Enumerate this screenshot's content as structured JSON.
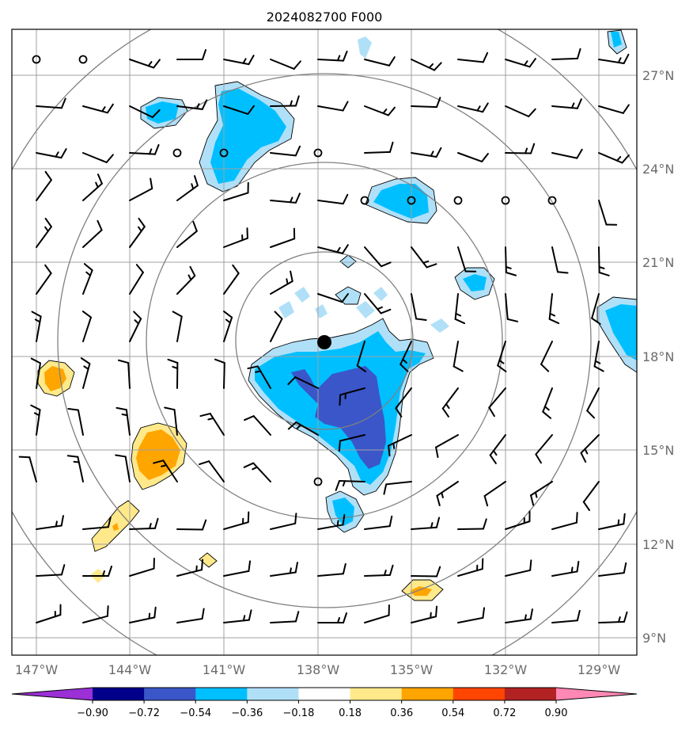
{
  "title": "2024082700 F000",
  "lon_labels": [
    "147°W",
    "144°W",
    "141°W",
    "138°W",
    "135°W",
    "132°W",
    "129°W"
  ],
  "lat_labels": [
    "27°N",
    "24°N",
    "21°N",
    "18°N",
    "15°N",
    "12°N",
    "9°N"
  ],
  "colorbar": {
    "ticks": [
      "−0.90",
      "−0.72",
      "−0.54",
      "−0.36",
      "−0.18",
      "0.18",
      "0.36",
      "0.54",
      "0.72",
      "0.90"
    ],
    "colors": [
      "#9b30d6",
      "#00008b",
      "#3a56c8",
      "#00bfff",
      "#b0e0f8",
      "#ffffff",
      "#ffe98a",
      "#ffa500",
      "#ff4500",
      "#b22222",
      "#ff88b4"
    ]
  },
  "colors": {
    "grid": "#a0a0a0",
    "range_rings": "#808080",
    "storm_center": "#000000"
  },
  "storm_center": {
    "lon": -137.8,
    "lat": 18.4
  },
  "range_rings": "concentric circles centered on the storm"
}
